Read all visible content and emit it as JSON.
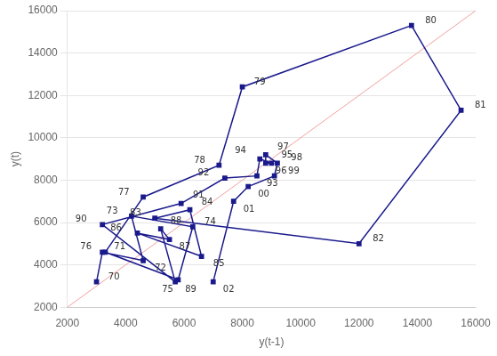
{
  "chart_data": {
    "type": "scatter",
    "xlabel": "y(t-1)",
    "ylabel": "y(t)",
    "xlim": [
      2000,
      16000
    ],
    "ylim": [
      2000,
      16000
    ],
    "xticks": [
      2000,
      4000,
      6000,
      8000,
      10000,
      12000,
      14000,
      16000
    ],
    "yticks": [
      2000,
      4000,
      6000,
      8000,
      10000,
      12000,
      14000,
      16000
    ],
    "grid": "y",
    "series": [
      {
        "color": "#1a1a8c",
        "marker": "square",
        "line_style": "solid",
        "x": [
          3000,
          3200,
          4600,
          4200,
          6300,
          5800,
          3300,
          4600,
          7200,
          8000,
          13800,
          15500,
          12000,
          5000,
          6200,
          6600,
          4400,
          5500,
          5200,
          5700,
          3200,
          5900,
          7400,
          8500,
          8600,
          9000,
          8800,
          8800,
          9200,
          9100,
          8200,
          7700,
          7000
        ],
        "values": [
          3200,
          4600,
          4200,
          6300,
          5800,
          3300,
          4600,
          7200,
          8700,
          12400,
          15300,
          11300,
          5000,
          6200,
          6600,
          4400,
          5500,
          5200,
          5700,
          3200,
          5900,
          6900,
          8100,
          8200,
          9000,
          8800,
          8800,
          9200,
          8800,
          8200,
          7700,
          7000,
          3200
        ],
        "labels": [
          "70",
          "71",
          "72",
          "73",
          "74",
          "75",
          "76",
          "77",
          "78",
          "79",
          "80",
          "81",
          "82",
          "83",
          "84",
          "85",
          "86",
          "87",
          "88",
          "89",
          "90",
          "91",
          "92",
          "93",
          "94",
          "95",
          "96",
          "97",
          "98",
          "99",
          "00",
          "01",
          "02"
        ]
      },
      {
        "color": "#f0a0a0",
        "marker": "none",
        "line_style": "solid",
        "x": [
          2000,
          16000
        ],
        "values": [
          2000,
          16000
        ]
      }
    ]
  }
}
